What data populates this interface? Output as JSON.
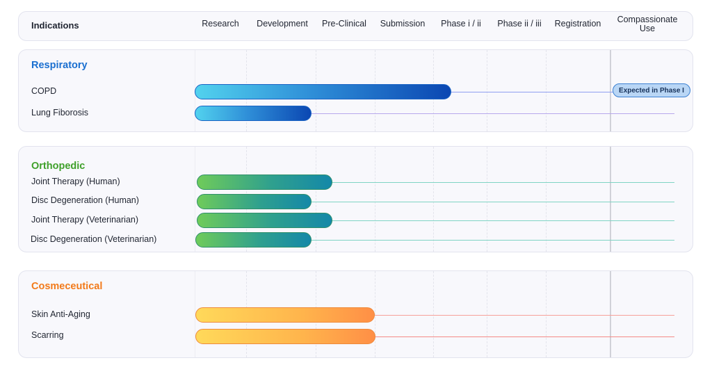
{
  "header": {
    "indications_label": "Indications",
    "stages": [
      "Research",
      "Development",
      "Pre-Clinical",
      "Submission",
      "Phase i / ii",
      "Phase ii / iii",
      "Registration",
      "Compassionate Use"
    ]
  },
  "colors": {
    "respiratory": "#1a6fd0",
    "orthopedic": "#3fa02a",
    "cosmeceutical": "#f27a1a"
  },
  "sections": [
    {
      "title": "Respiratory",
      "rows": [
        {
          "label": "COPD",
          "badge": "Expected in Phase I"
        },
        {
          "label": "Lung Fiborosis"
        }
      ]
    },
    {
      "title": "Orthopedic",
      "rows": [
        {
          "label": "Joint Therapy (Human)"
        },
        {
          "label": "Disc Degeneration (Human)"
        },
        {
          "label": "Joint Therapy (Veterinarian)"
        },
        {
          "label": "Disc Degeneration (Veterinarian)"
        }
      ]
    },
    {
      "title": "Cosmeceutical",
      "rows": [
        {
          "label": "Skin Anti-Aging"
        },
        {
          "label": "Scarring"
        }
      ]
    }
  ]
}
